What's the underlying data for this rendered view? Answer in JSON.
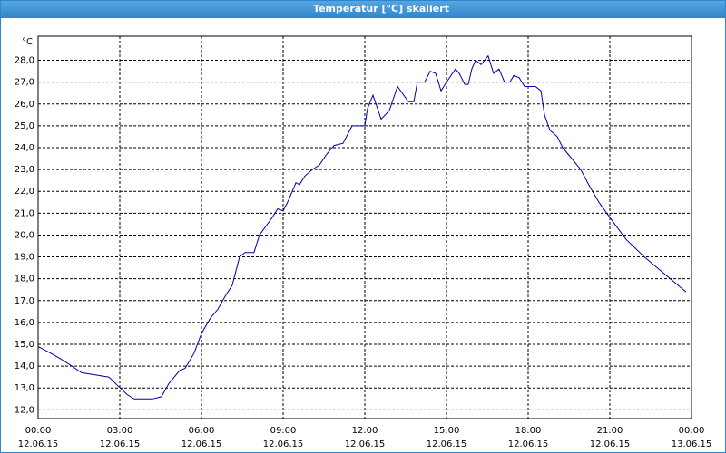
{
  "chart_data": {
    "type": "line",
    "title": "Temperatur [°C] skaliert",
    "y_label": "°C",
    "x": [
      0,
      0.6,
      1,
      1.6,
      2.1,
      2.6,
      2.93,
      3.27,
      3.53,
      3.93,
      4.2,
      4.53,
      4.8,
      5.2,
      5.4,
      5.73,
      6,
      6.33,
      6.6,
      6.87,
      7.13,
      7.4,
      7.6,
      7.93,
      8.13,
      8.6,
      8.8,
      9,
      9.2,
      9.47,
      9.6,
      9.8,
      10.07,
      10.33,
      10.6,
      10.87,
      11.2,
      11.53,
      11.8,
      12,
      12.1,
      12.3,
      12.6,
      12.9,
      13.2,
      13.6,
      13.8,
      13.93,
      14.2,
      14.4,
      14.6,
      14.8,
      15,
      15.33,
      15.47,
      15.67,
      15.8,
      15.93,
      16.07,
      16.27,
      16.53,
      16.73,
      16.93,
      17.13,
      17.33,
      17.47,
      17.67,
      17.87,
      18.27,
      18.47,
      18.6,
      18.8,
      19.07,
      19.27,
      19.6,
      19.93,
      20.27,
      20.6,
      21,
      21.6,
      22.27,
      22.93,
      23.6,
      23.8
    ],
    "series": [
      {
        "name": "Temperatur",
        "color": "#0000a8",
        "values": [
          14.9,
          14.5,
          14.2,
          13.7,
          13.6,
          13.5,
          13.1,
          12.7,
          12.5,
          12.5,
          12.5,
          12.6,
          13.2,
          13.8,
          13.9,
          14.6,
          15.5,
          16.2,
          16.6,
          17.2,
          17.7,
          19.0,
          19.2,
          19.2,
          20.0,
          20.8,
          21.2,
          21.1,
          21.6,
          22.4,
          22.3,
          22.7,
          23.0,
          23.2,
          23.7,
          24.1,
          24.2,
          25.0,
          25.0,
          25.0,
          25.8,
          26.4,
          25.3,
          25.7,
          26.8,
          26.1,
          26.1,
          27.0,
          27.0,
          27.5,
          27.4,
          26.6,
          27.0,
          27.6,
          27.4,
          26.9,
          26.9,
          27.6,
          28.0,
          27.8,
          28.2,
          27.4,
          27.6,
          27.0,
          27.0,
          27.3,
          27.2,
          26.8,
          26.8,
          26.6,
          25.5,
          24.8,
          24.5,
          24.0,
          23.5,
          23.0,
          22.2,
          21.5,
          20.8,
          19.8,
          19.0,
          18.3,
          17.6,
          17.4
        ]
      }
    ],
    "xlim": [
      0,
      24
    ],
    "xticks": [
      {
        "value": 0,
        "label": "00:00",
        "date": "12.06.15"
      },
      {
        "value": 3,
        "label": "03:00",
        "date": "12.06.15"
      },
      {
        "value": 6,
        "label": "06:00",
        "date": "12.06.15"
      },
      {
        "value": 9,
        "label": "09:00",
        "date": "12.06.15"
      },
      {
        "value": 12,
        "label": "12:00",
        "date": "12.06.15"
      },
      {
        "value": 15,
        "label": "15:00",
        "date": "12.06.15"
      },
      {
        "value": 18,
        "label": "18:00",
        "date": "12.06.15"
      },
      {
        "value": 21,
        "label": "21:00",
        "date": "12.06.15"
      },
      {
        "value": 24,
        "label": "00:00",
        "date": "13.06.15"
      }
    ],
    "ylim": [
      11.6,
      29.1
    ],
    "yticks": [
      {
        "value": 12,
        "label": "12,0"
      },
      {
        "value": 13,
        "label": "13,0"
      },
      {
        "value": 14,
        "label": "14,0"
      },
      {
        "value": 15,
        "label": "15,0"
      },
      {
        "value": 16,
        "label": "16,0"
      },
      {
        "value": 17,
        "label": "17,0"
      },
      {
        "value": 18,
        "label": "18,0"
      },
      {
        "value": 19,
        "label": "19,0"
      },
      {
        "value": 20,
        "label": "20,0"
      },
      {
        "value": 21,
        "label": "21,0"
      },
      {
        "value": 22,
        "label": "22,0"
      },
      {
        "value": 23,
        "label": "23,0"
      },
      {
        "value": 24,
        "label": "24,0"
      },
      {
        "value": 25,
        "label": "25,0"
      },
      {
        "value": 26,
        "label": "26,0"
      },
      {
        "value": 27,
        "label": "27,0"
      },
      {
        "value": 28,
        "label": "28,0"
      }
    ],
    "grid": true
  }
}
